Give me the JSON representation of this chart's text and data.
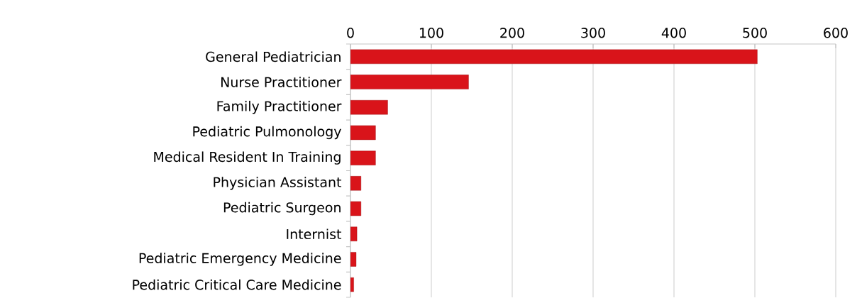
{
  "chart_data": {
    "type": "bar",
    "orientation": "horizontal",
    "categories": [
      "General Pediatrician",
      "Nurse Practitioner",
      "Family Practitioner",
      "Pediatric Pulmonology",
      "Medical Resident In Training",
      "Physician Assistant",
      "Pediatric Surgeon",
      "Internist",
      "Pediatric Emergency Medicine",
      "Pediatric Critical Care Medicine"
    ],
    "values": [
      503,
      146,
      46,
      31,
      31,
      13,
      13,
      8,
      7,
      4
    ],
    "color": "#d9141a",
    "xlim": [
      0,
      600
    ],
    "xticks": [
      0,
      100,
      200,
      300,
      400,
      500,
      600
    ],
    "grid": "x"
  }
}
